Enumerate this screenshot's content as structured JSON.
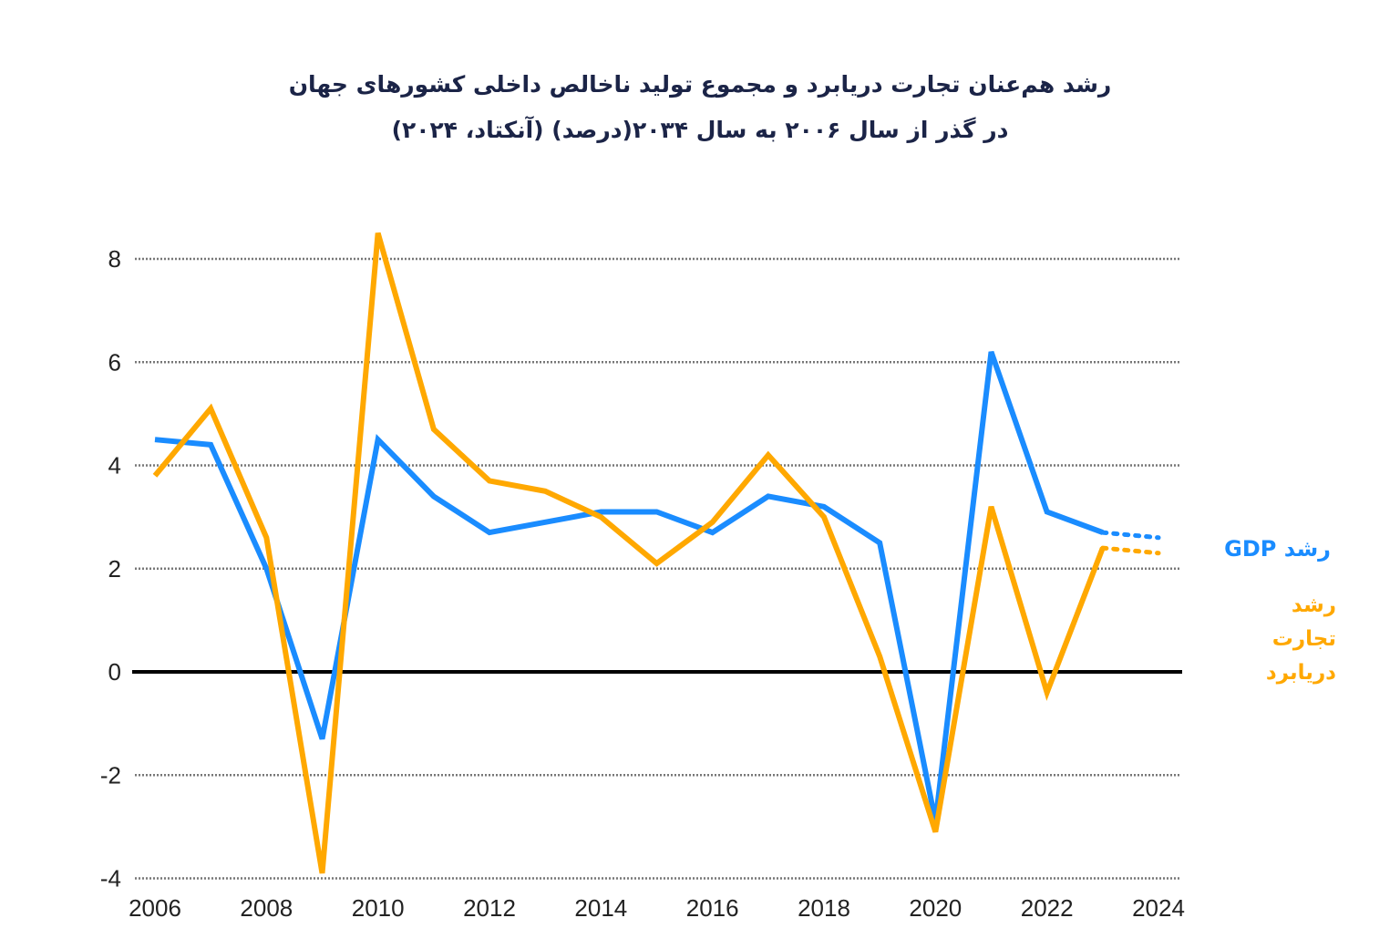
{
  "chart_data": {
    "type": "line",
    "title": "رشد هم‌عنان تجارت دریابرد و مجموع تولید ناخالص داخلی کشورهای جهان",
    "subtitle": "در گذر از سال ۲۰۰۶ به سال ۲۰۳۴(درصد) (آنکتاد، ۲۰۲۴)",
    "xlabel": "",
    "ylabel": "",
    "x": [
      2006,
      2007,
      2008,
      2009,
      2010,
      2011,
      2012,
      2013,
      2014,
      2015,
      2016,
      2017,
      2018,
      2019,
      2020,
      2021,
      2022,
      2023,
      2024
    ],
    "xlim": [
      2006,
      2024
    ],
    "ylim": [
      -4,
      8
    ],
    "x_ticks": [
      "2006",
      "2008",
      "2010",
      "2012",
      "2014",
      "2016",
      "2018",
      "2020",
      "2022",
      "2024"
    ],
    "y_ticks": [
      "8",
      "6",
      "4",
      "2",
      "0",
      "-2",
      "-4"
    ],
    "grid": "horizontal dotted",
    "projected_years": [
      2024
    ],
    "legend_placement": "right",
    "series": [
      {
        "name": "رشد GDP",
        "color": "#1a8cff",
        "values": [
          4.5,
          4.4,
          2.0,
          -1.3,
          4.5,
          3.4,
          2.7,
          2.9,
          3.1,
          3.1,
          2.7,
          3.4,
          3.2,
          2.5,
          -2.9,
          6.2,
          3.1,
          2.7,
          2.6
        ]
      },
      {
        "name": "رشد تجارت دریابرد",
        "color": "#ffa800",
        "values": [
          3.8,
          5.1,
          2.6,
          -3.9,
          8.5,
          4.7,
          3.7,
          3.5,
          3.0,
          2.1,
          2.9,
          4.2,
          3.0,
          0.3,
          -3.1,
          3.2,
          -0.4,
          2.4,
          2.3
        ]
      }
    ],
    "legend": {
      "gdp": "رشد GDP",
      "trade": [
        "رشد",
        "تجارت",
        "دریابرد"
      ]
    }
  }
}
